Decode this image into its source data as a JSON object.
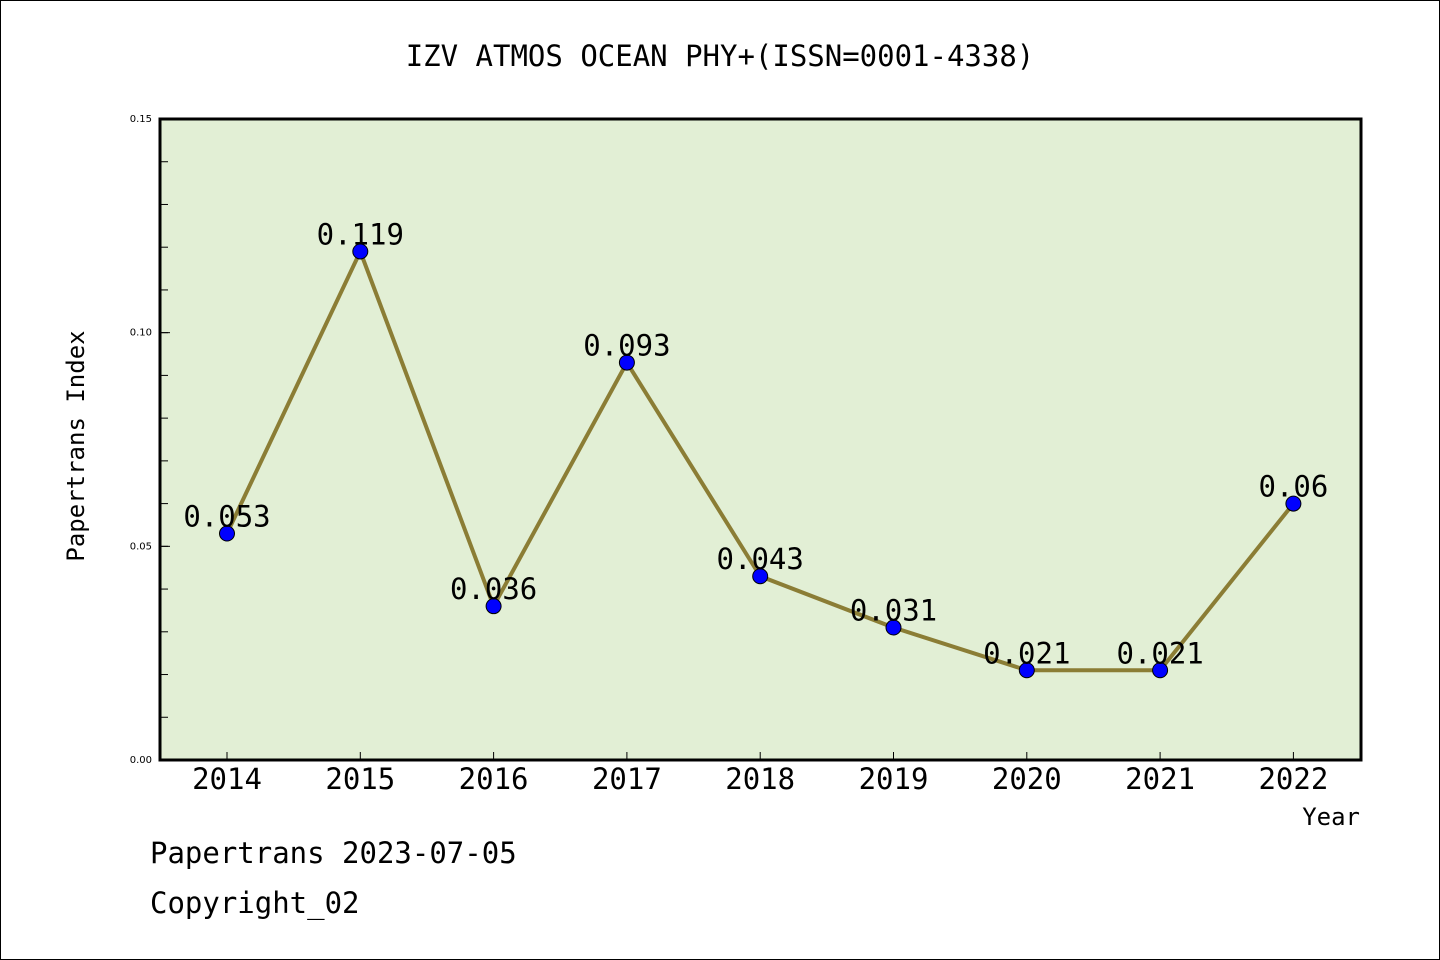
{
  "chart_data": {
    "type": "line",
    "title": "IZV ATMOS OCEAN PHY+(ISSN=0001-4338)",
    "xlabel": "Year",
    "ylabel": "Papertrans Index",
    "categories": [
      "2014",
      "2015",
      "2016",
      "2017",
      "2018",
      "2019",
      "2020",
      "2021",
      "2022"
    ],
    "series": [
      {
        "values": [
          0.053,
          0.119,
          0.036,
          0.093,
          0.043,
          0.031,
          0.021,
          0.021,
          0.06
        ],
        "labels": [
          "0.053",
          "0.119",
          "0.036",
          "0.093",
          "0.043",
          "0.031",
          "0.021",
          "0.021",
          "0.06"
        ]
      }
    ],
    "ylim": [
      0,
      0.15
    ],
    "yticks": [
      "0.00",
      "0.05",
      "0.10",
      "0.15"
    ],
    "grid": false,
    "colors": {
      "plot_background": "#e2efd5",
      "line": "#8b7d35",
      "marker": "#0000ff"
    }
  },
  "footer": {
    "line1": "Papertrans 2023-07-05",
    "line2": "Copyright_02"
  }
}
